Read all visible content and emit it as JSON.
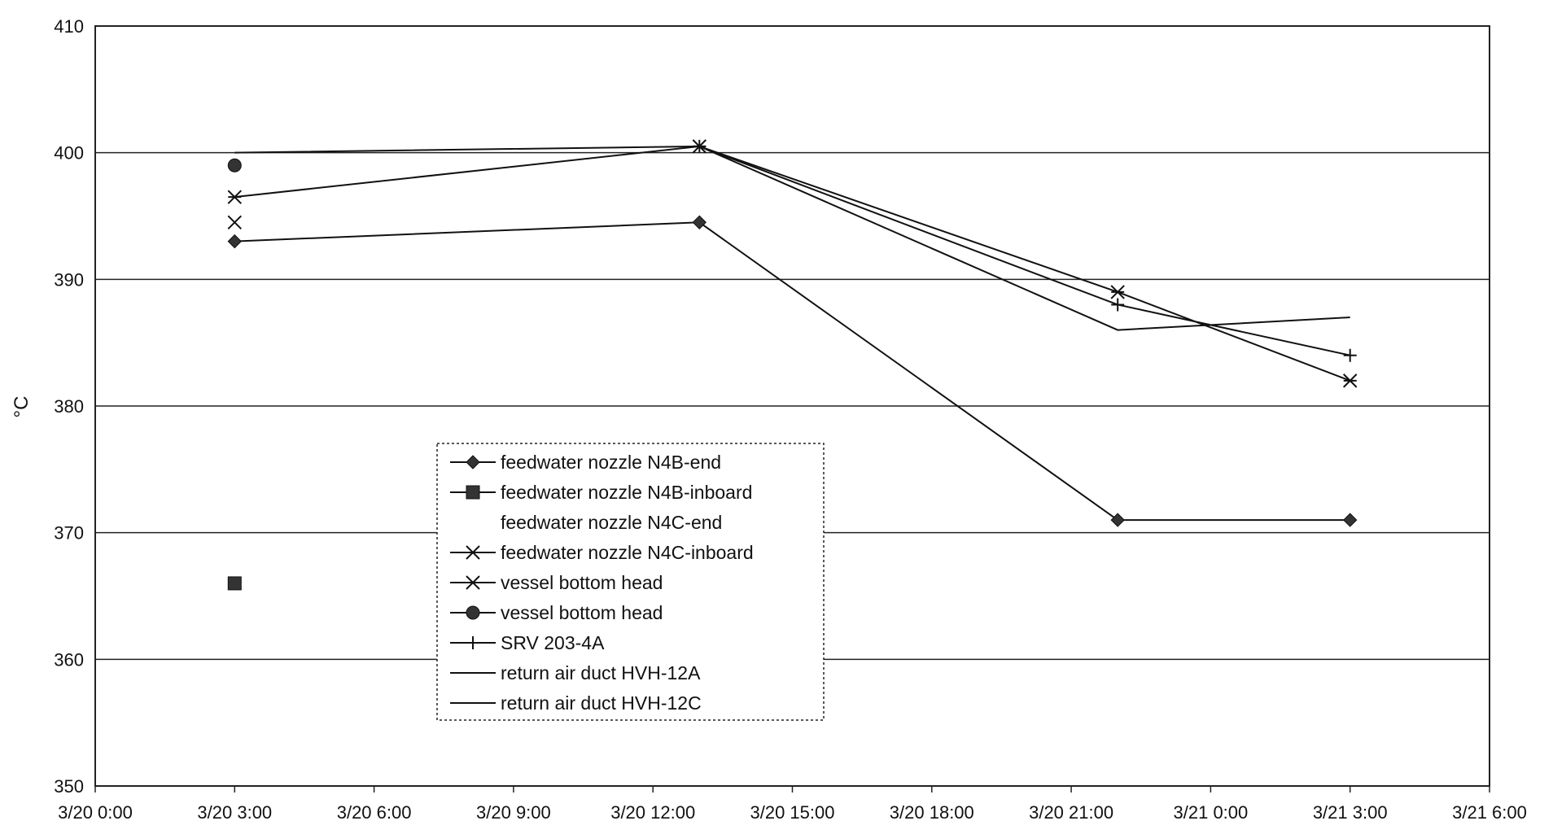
{
  "chart_data": {
    "type": "line",
    "title": "",
    "xlabel": "",
    "ylabel": "°C",
    "ylim": [
      350,
      410
    ],
    "yticks": [
      350,
      360,
      370,
      380,
      390,
      400,
      410
    ],
    "xlim_hours": [
      0,
      54
    ],
    "xticks": [
      {
        "label": "3/20 0:00",
        "h": 0
      },
      {
        "label": "3/20 3:00",
        "h": 3
      },
      {
        "label": "3/20 6:00",
        "h": 6
      },
      {
        "label": "3/20 9:00",
        "h": 9
      },
      {
        "label": "3/20 12:00",
        "h": 12
      },
      {
        "label": "3/20 15:00",
        "h": 15
      },
      {
        "label": "3/20 18:00",
        "h": 18
      },
      {
        "label": "3/20 21:00",
        "h": 21
      },
      {
        "label": "3/21 0:00",
        "h": 24
      },
      {
        "label": "3/21 3:00",
        "h": 27
      },
      {
        "label": "3/21 6:00",
        "h": 30
      }
    ],
    "grid": true,
    "legend_position": "lower-center",
    "series": [
      {
        "name": "feedwater nozzle N4B-end",
        "marker": "diamond",
        "points": [
          {
            "x": "3/20 3:00",
            "y": 393
          },
          {
            "x": "3/20 13:00",
            "y": 394.5
          },
          {
            "x": "3/20 22:00",
            "y": 371
          },
          {
            "x": "3/21 3:00",
            "y": 371
          }
        ]
      },
      {
        "name": "feedwater nozzle N4B-inboard",
        "marker": "square",
        "points": [
          {
            "x": "3/20 3:00",
            "y": 366
          }
        ]
      },
      {
        "name": "feedwater nozzle N4C-end",
        "marker": "none",
        "points": []
      },
      {
        "name": "feedwater nozzle N4C-inboard",
        "marker": "x",
        "points": [
          {
            "x": "3/20 3:00",
            "y": 394.5
          }
        ]
      },
      {
        "name": "vessel bottom head",
        "marker": "asterisk",
        "points": [
          {
            "x": "3/20 3:00",
            "y": 396.5
          },
          {
            "x": "3/20 13:00",
            "y": 400.5
          },
          {
            "x": "3/20 22:00",
            "y": 389
          },
          {
            "x": "3/21 3:00",
            "y": 382
          }
        ]
      },
      {
        "name": "vessel bottom head",
        "marker": "circle",
        "points": [
          {
            "x": "3/20 3:00",
            "y": 399
          }
        ]
      },
      {
        "name": "SRV 203-4A",
        "marker": "plus",
        "points": [
          {
            "x": "3/20 13:00",
            "y": 400.5
          },
          {
            "x": "3/20 22:00",
            "y": 388
          },
          {
            "x": "3/21 3:00",
            "y": 384
          }
        ]
      },
      {
        "name": "return air duct HVH-12A",
        "marker": "none",
        "points": [
          {
            "x": "3/20 3:00",
            "y": 400
          },
          {
            "x": "3/20 13:00",
            "y": 400.5
          },
          {
            "x": "3/20 22:00",
            "y": 386
          },
          {
            "x": "3/21 3:00",
            "y": 387
          }
        ]
      },
      {
        "name": "return air duct HVH-12C",
        "marker": "none",
        "points": []
      }
    ]
  }
}
